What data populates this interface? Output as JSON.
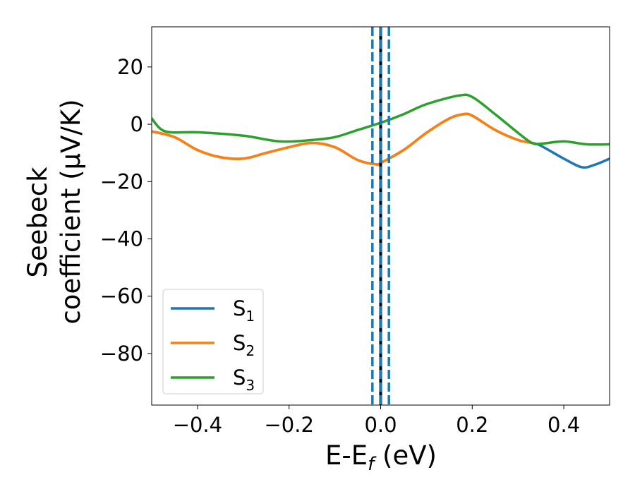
{
  "chart_data": {
    "type": "line",
    "xlabel": "E-E_f (eV)",
    "xlabel_parts": {
      "main": "E-E",
      "sub": "f",
      "tail": " (eV)"
    },
    "ylabel_lines": [
      "Seebeck",
      "coefficient  (μV/K)"
    ],
    "xlim": [
      -0.5,
      0.5
    ],
    "ylim": [
      -98,
      34
    ],
    "xticks": [
      -0.4,
      -0.2,
      0.0,
      0.2,
      0.4
    ],
    "xtick_labels": [
      "−0.4",
      "−0.2",
      "0.0",
      "0.2",
      "0.4"
    ],
    "yticks": [
      20,
      0,
      -20,
      -40,
      -60,
      -80
    ],
    "ytick_labels": [
      "20",
      "0",
      "−20",
      "−40",
      "−60",
      "−80"
    ],
    "grid": false,
    "legend_position": "lower-left",
    "vlines": [
      {
        "x": -0.018,
        "style": "dashed",
        "color": "#1f77b4"
      },
      {
        "x": 0.0,
        "style": "solid",
        "color": "#000000"
      },
      {
        "x": 0.0,
        "style": "dashed",
        "color": "#1f77b4"
      },
      {
        "x": 0.018,
        "style": "dashed",
        "color": "#1f77b4"
      }
    ],
    "series": [
      {
        "name": "S1",
        "label_main": "S",
        "label_sub": "1",
        "color": "#1f77b4",
        "x": [
          -0.5,
          -0.45,
          -0.4,
          -0.35,
          -0.3,
          -0.25,
          -0.2,
          -0.15,
          -0.1,
          -0.05,
          -0.01,
          0.0,
          0.05,
          0.1,
          0.15,
          0.18,
          0.2,
          0.25,
          0.3,
          0.33,
          0.35,
          0.4,
          0.44,
          0.47,
          0.5
        ],
        "y": [
          -2.5,
          -4.5,
          -9.0,
          -11.5,
          -12.0,
          -10.0,
          -8.0,
          -6.5,
          -8.0,
          -12.5,
          -14.0,
          -13.5,
          -9.0,
          -3.0,
          2.0,
          3.5,
          3.0,
          -2.0,
          -5.5,
          -6.5,
          -7.5,
          -12.0,
          -15.0,
          -14.0,
          -12.0
        ]
      },
      {
        "name": "S2",
        "label_main": "S",
        "label_sub": "2",
        "color": "#ff7f0e",
        "x": [
          -0.5,
          -0.45,
          -0.4,
          -0.35,
          -0.3,
          -0.25,
          -0.2,
          -0.15,
          -0.1,
          -0.05,
          -0.01,
          0.0,
          0.05,
          0.1,
          0.15,
          0.18,
          0.2,
          0.25,
          0.3,
          0.33
        ],
        "y": [
          -2.5,
          -4.5,
          -9.0,
          -11.5,
          -12.0,
          -10.0,
          -8.0,
          -6.5,
          -8.0,
          -12.5,
          -14.0,
          -13.5,
          -9.0,
          -3.0,
          2.0,
          3.5,
          3.0,
          -2.0,
          -5.5,
          -6.5
        ]
      },
      {
        "name": "S3",
        "label_main": "S",
        "label_sub": "3",
        "color": "#2ca02c",
        "x": [
          -0.5,
          -0.47,
          -0.4,
          -0.3,
          -0.22,
          -0.15,
          -0.1,
          -0.05,
          0.0,
          0.05,
          0.1,
          0.17,
          0.2,
          0.25,
          0.3,
          0.33,
          0.35,
          0.4,
          0.45,
          0.5
        ],
        "y": [
          2.0,
          -2.5,
          -2.8,
          -4.0,
          -6.0,
          -5.5,
          -4.5,
          -2.0,
          0.5,
          3.5,
          7.0,
          10.0,
          9.5,
          3.5,
          -3.0,
          -6.5,
          -6.8,
          -6.0,
          -7.0,
          -7.0
        ]
      }
    ]
  }
}
